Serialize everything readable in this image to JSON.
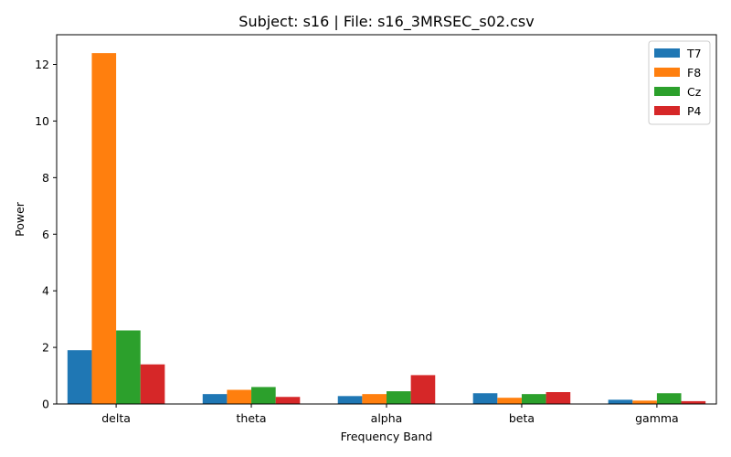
{
  "chart_data": {
    "type": "bar",
    "title": "Subject: s16 | File: s16_3MRSEC_s02.csv",
    "xlabel": "Frequency Band",
    "ylabel": "Power",
    "categories": [
      "delta",
      "theta",
      "alpha",
      "beta",
      "gamma"
    ],
    "ylim": [
      0,
      13.05
    ],
    "yticks": [
      0,
      2,
      4,
      6,
      8,
      10,
      12
    ],
    "grid": false,
    "legend_position": "top-right",
    "series": [
      {
        "name": "T7",
        "color": "#1f77b4",
        "values": [
          1.9,
          0.35,
          0.28,
          0.38,
          0.15
        ]
      },
      {
        "name": "F8",
        "color": "#ff7f0e",
        "values": [
          12.4,
          0.5,
          0.35,
          0.22,
          0.12
        ]
      },
      {
        "name": "Cz",
        "color": "#2ca02c",
        "values": [
          2.6,
          0.6,
          0.45,
          0.35,
          0.38
        ]
      },
      {
        "name": "P4",
        "color": "#d62728",
        "values": [
          1.4,
          0.25,
          1.02,
          0.42,
          0.1
        ]
      }
    ]
  }
}
